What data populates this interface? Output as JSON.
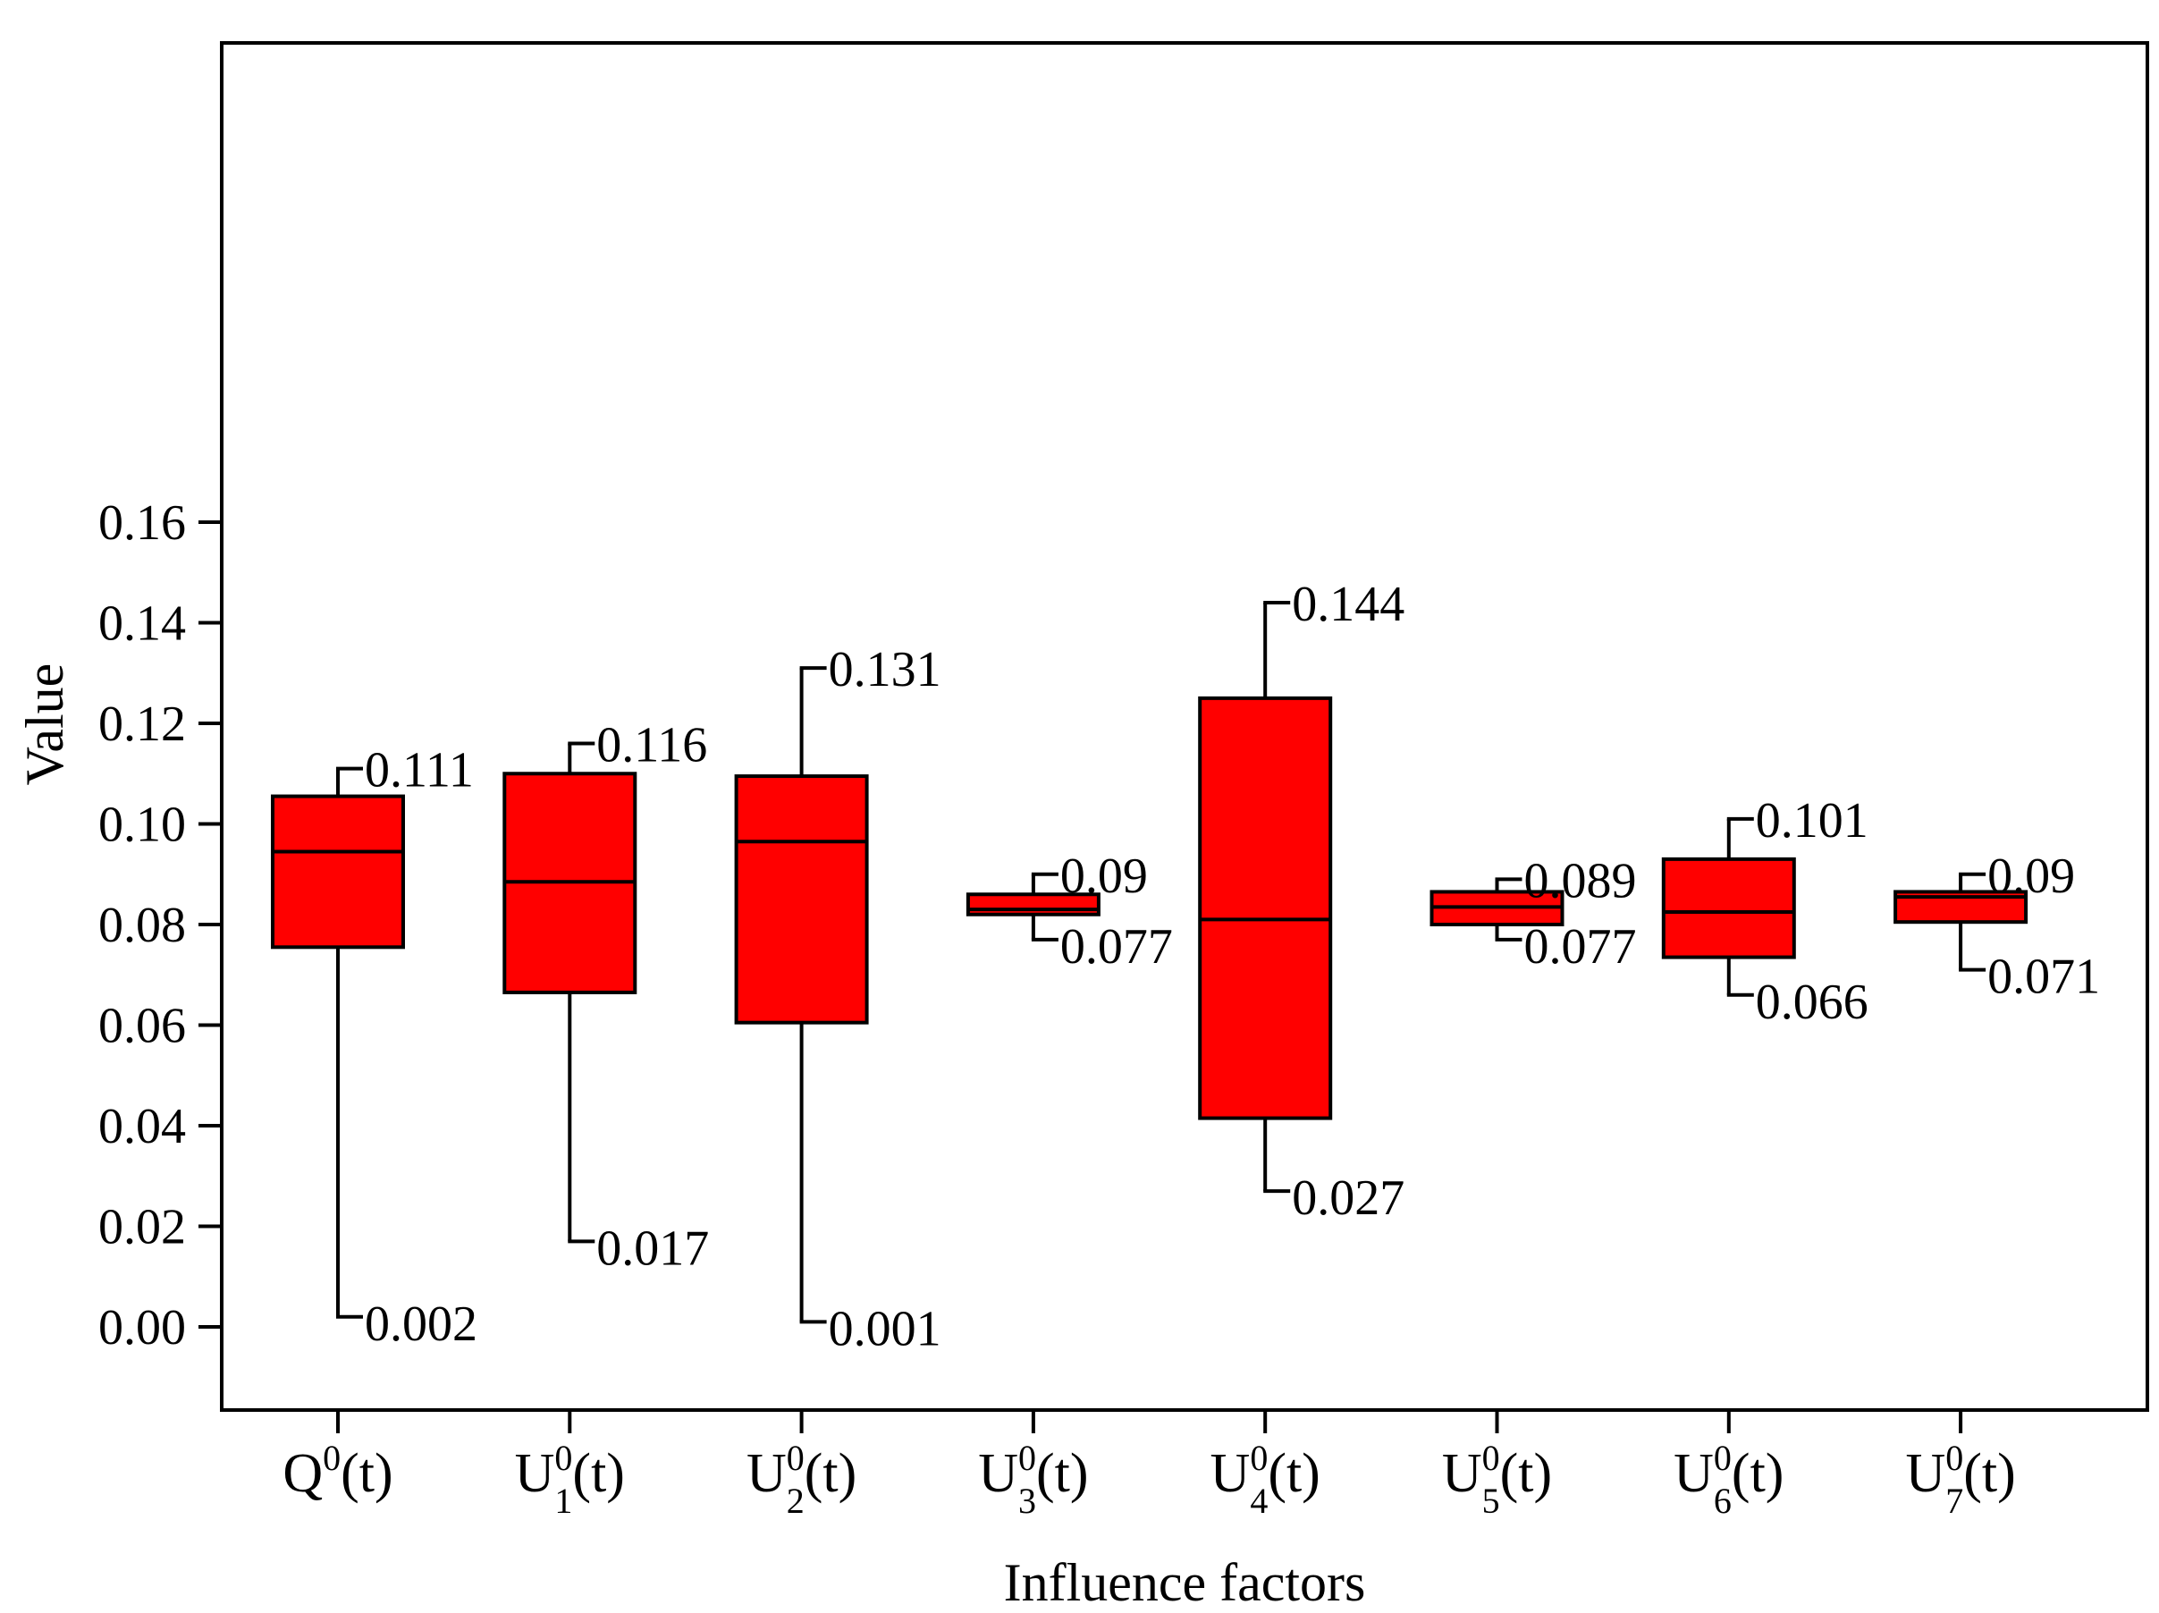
{
  "chart_data": {
    "type": "box",
    "xlabel": "Influence factors",
    "ylabel": "Value",
    "ylim": [
      -0.01,
      0.16
    ],
    "yticks": [
      "0.00",
      "0.02",
      "0.04",
      "0.06",
      "0.08",
      "0.10",
      "0.12",
      "0.14",
      "0.16"
    ],
    "box_color": "#ff0000",
    "categories": [
      {
        "base": "Q",
        "sup": "0",
        "sub": "",
        "tail": "(t)"
      },
      {
        "base": "U",
        "sup": "0",
        "sub": "1",
        "tail": "(t)"
      },
      {
        "base": "U",
        "sup": "0",
        "sub": "2",
        "tail": "(t)"
      },
      {
        "base": "U",
        "sup": "0",
        "sub": "3",
        "tail": "(t)"
      },
      {
        "base": "U",
        "sup": "0",
        "sub": "4",
        "tail": "(t)"
      },
      {
        "base": "U",
        "sup": "0",
        "sub": "5",
        "tail": "(t)"
      },
      {
        "base": "U",
        "sup": "0",
        "sub": "6",
        "tail": "(t)"
      },
      {
        "base": "U",
        "sup": "0",
        "sub": "7",
        "tail": "(t)"
      }
    ],
    "boxes": [
      {
        "min": 0.002,
        "q1": 0.0755,
        "median": 0.0945,
        "q3": 0.1055,
        "max": 0.111,
        "min_label": "0.002",
        "max_label": "0.111"
      },
      {
        "min": 0.017,
        "q1": 0.0665,
        "median": 0.0885,
        "q3": 0.11,
        "max": 0.116,
        "min_label": "0.017",
        "max_label": "0.116"
      },
      {
        "min": 0.001,
        "q1": 0.0605,
        "median": 0.0965,
        "q3": 0.1095,
        "max": 0.131,
        "min_label": "0.001",
        "max_label": "0.131"
      },
      {
        "min": 0.077,
        "q1": 0.082,
        "median": 0.083,
        "q3": 0.086,
        "max": 0.09,
        "min_label": "0.077",
        "max_label": "0.09"
      },
      {
        "min": 0.027,
        "q1": 0.0415,
        "median": 0.081,
        "q3": 0.125,
        "max": 0.144,
        "min_label": "0.027",
        "max_label": "0.144"
      },
      {
        "min": 0.077,
        "q1": 0.08,
        "median": 0.0835,
        "q3": 0.0865,
        "max": 0.089,
        "min_label": "0.077",
        "max_label": "0.089"
      },
      {
        "min": 0.066,
        "q1": 0.0735,
        "median": 0.0825,
        "q3": 0.093,
        "max": 0.101,
        "min_label": "0.066",
        "max_label": "0.101"
      },
      {
        "min": 0.071,
        "q1": 0.0805,
        "median": 0.0855,
        "q3": 0.0865,
        "max": 0.09,
        "min_label": "0.071",
        "max_label": "0.09"
      }
    ]
  }
}
